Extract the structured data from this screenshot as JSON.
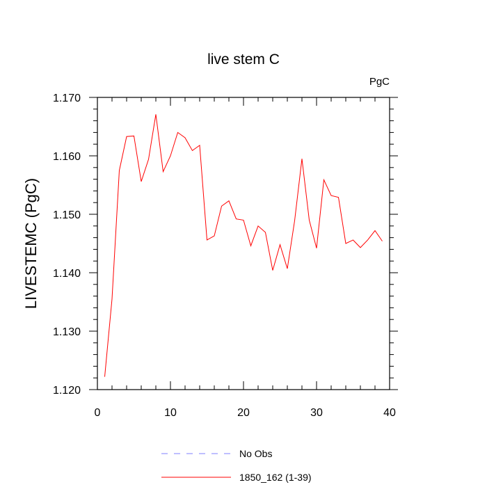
{
  "chart_data": {
    "type": "line",
    "title": "live stem C",
    "units_label": "PgC",
    "xlabel": "",
    "ylabel": "LIVESTEMC  (PgC)",
    "xlim": [
      0,
      40
    ],
    "ylim": [
      1.12,
      1.17
    ],
    "x_ticks": [
      0,
      10,
      20,
      30,
      40
    ],
    "x_tick_labels": [
      "0",
      "10",
      "20",
      "30",
      "40"
    ],
    "y_ticks": [
      1.12,
      1.13,
      1.14,
      1.15,
      1.16,
      1.17
    ],
    "y_tick_labels": [
      "1.120",
      "1.130",
      "1.140",
      "1.150",
      "1.160",
      "1.170"
    ],
    "grid": false,
    "legend_placement": "bottom-center",
    "series": [
      {
        "name": "No Obs",
        "color": "#7f7fff",
        "dashed": true,
        "x": [],
        "y": []
      },
      {
        "name": "1850_162 (1-39)",
        "color": "#ff0000",
        "dashed": false,
        "x": [
          1,
          2,
          3,
          4,
          5,
          6,
          7,
          8,
          9,
          10,
          11,
          12,
          13,
          14,
          15,
          16,
          17,
          18,
          19,
          20,
          21,
          22,
          23,
          24,
          25,
          26,
          27,
          28,
          29,
          30,
          31,
          32,
          33,
          34,
          35,
          36,
          37,
          38,
          39
        ],
        "y": [
          1.1222,
          1.1355,
          1.1575,
          1.1633,
          1.1634,
          1.1556,
          1.1594,
          1.1671,
          1.1573,
          1.16,
          1.164,
          1.1631,
          1.1609,
          1.1618,
          1.1456,
          1.1463,
          1.1514,
          1.1523,
          1.1492,
          1.149,
          1.1446,
          1.148,
          1.1469,
          1.1404,
          1.1448,
          1.1407,
          1.1489,
          1.1595,
          1.149,
          1.1442,
          1.1559,
          1.1532,
          1.1529,
          1.145,
          1.1456,
          1.1443,
          1.1456,
          1.1472,
          1.1454
        ]
      }
    ]
  }
}
